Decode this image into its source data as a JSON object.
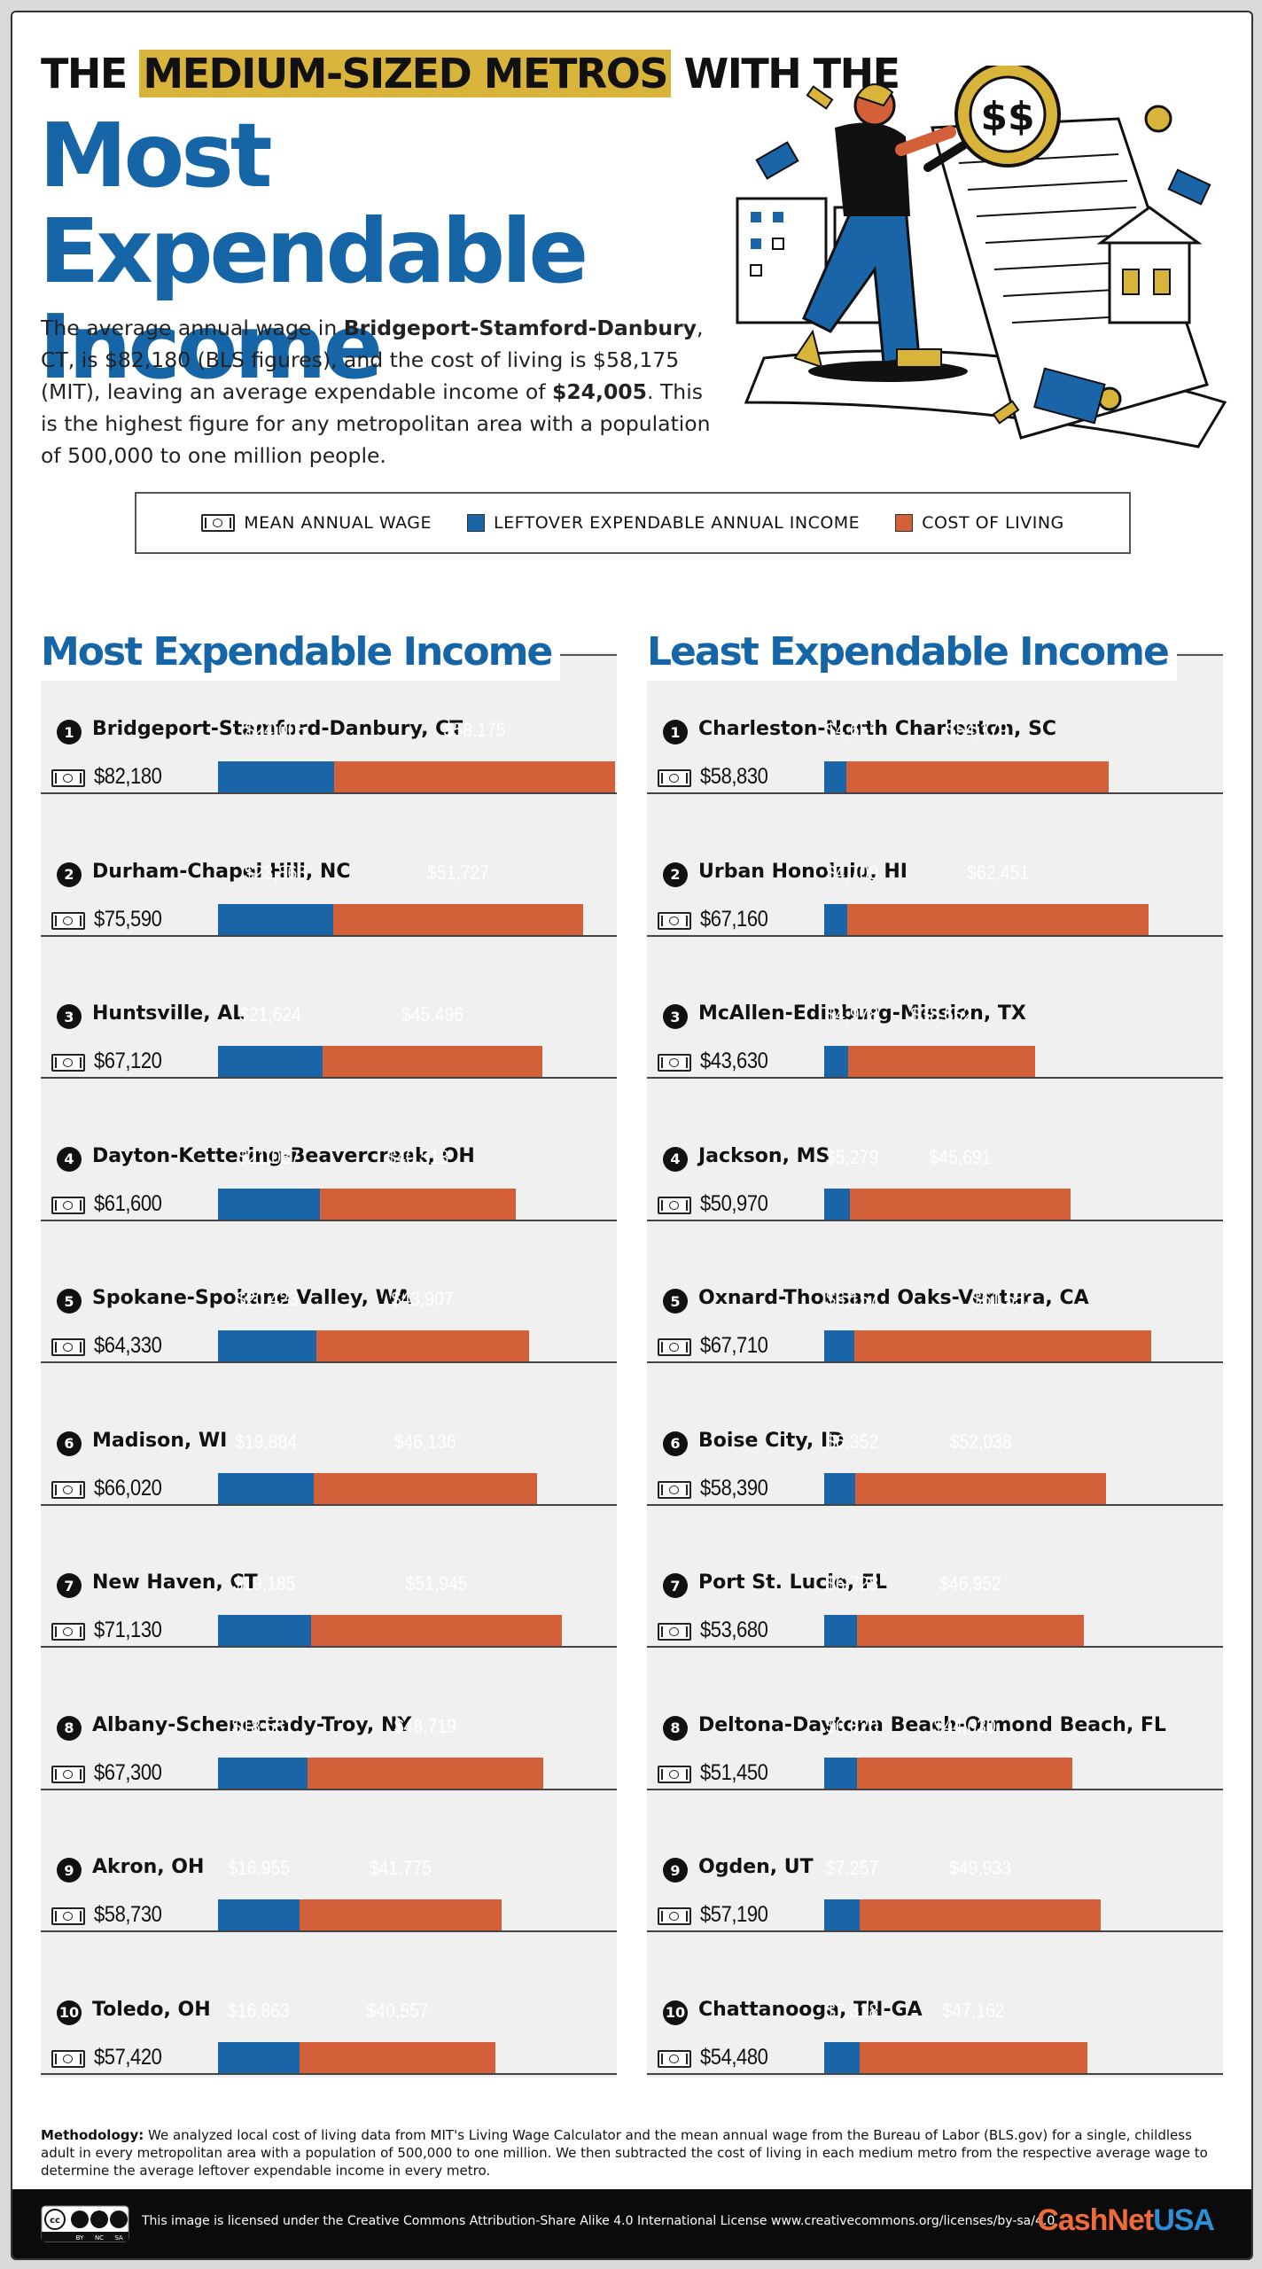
{
  "header": {
    "kicker_highlight": "MEDIUM-SIZED METROS",
    "kicker_pre": "THE ",
    "kicker_post": " WITH THE",
    "title_line1": "Most Expendable",
    "title_line2": "Income",
    "intro": {
      "p1": "The average annual wage in ",
      "city": "Bridgeport-Stamford-Danbury",
      "p2": ", CT, is $82,180 (BLS figures), and the cost of living is $58,175 (MIT), leaving an average expendable income of ",
      "amount": "$24,005",
      "p3": ". This is the highest figure for any metropolitan area with a population of 500,000 to one million people."
    },
    "illustration_icon": "person-with-magnifying-glass-receipt-illustration",
    "magnifier_text": "$$"
  },
  "legend": {
    "wage": "MEAN ANNUAL WAGE",
    "leftover": "LEFTOVER EXPENDABLE ANNUAL INCOME",
    "cost": "COST OF LIVING"
  },
  "colors": {
    "blue": "#1a64a8",
    "orange": "#d4603a",
    "title_blue": "#1565a7",
    "highlight": "#d8b43a"
  },
  "chart_data": [
    {
      "type": "bar",
      "title": "Most Expendable Income",
      "stacked": true,
      "orientation": "horizontal",
      "series_names": [
        "Leftover Expendable Annual Income",
        "Cost of Living"
      ],
      "rows": [
        {
          "rank": "1",
          "name": "Bridgeport-Stamford-Danbury, CT",
          "wage": 82180,
          "wage_label": "$82,180",
          "leftover": 24005,
          "leftover_label": "$24,005",
          "cost": 58175,
          "cost_label": "$58,175"
        },
        {
          "rank": "2",
          "name": "Durham-Chapel Hill, NC",
          "wage": 75590,
          "wage_label": "$75,590",
          "leftover": 23863,
          "leftover_label": "$23,863",
          "cost": 51727,
          "cost_label": "$51,727"
        },
        {
          "rank": "3",
          "name": "Huntsville, AL",
          "wage": 67120,
          "wage_label": "$67,120",
          "leftover": 21624,
          "leftover_label": "$21,624",
          "cost": 45496,
          "cost_label": "$45,496"
        },
        {
          "rank": "4",
          "name": "Dayton-Kettering-Beavercreek, OH",
          "wage": 61600,
          "wage_label": "$61,600",
          "leftover": 21087,
          "leftover_label": "$21,087",
          "cost": 40513,
          "cost_label": "$40,513"
        },
        {
          "rank": "5",
          "name": "Spokane-Spokane Valley, WA",
          "wage": 64330,
          "wage_label": "$64,330",
          "leftover": 20423,
          "leftover_label": "$20,423",
          "cost": 43907,
          "cost_label": "$43,907"
        },
        {
          "rank": "6",
          "name": "Madison, WI",
          "wage": 66020,
          "wage_label": "$66,020",
          "leftover": 19884,
          "leftover_label": "$19,884",
          "cost": 46136,
          "cost_label": "$46,136"
        },
        {
          "rank": "7",
          "name": "New Haven, CT",
          "wage": 71130,
          "wage_label": "$71,130",
          "leftover": 19185,
          "leftover_label": "$19,185",
          "cost": 51945,
          "cost_label": "$51,945"
        },
        {
          "rank": "8",
          "name": "Albany-Schenectady-Troy, NY",
          "wage": 67300,
          "wage_label": "$67,300",
          "leftover": 18581,
          "leftover_label": "$18,581",
          "cost": 48719,
          "cost_label": "$48,719"
        },
        {
          "rank": "9",
          "name": "Akron, OH",
          "wage": 58730,
          "wage_label": "$58,730",
          "leftover": 16955,
          "leftover_label": "$16,955",
          "cost": 41775,
          "cost_label": "$41,775"
        },
        {
          "rank": "10",
          "name": "Toledo, OH",
          "wage": 57420,
          "wage_label": "$57,420",
          "leftover": 16863,
          "leftover_label": "$16,863",
          "cost": 40557,
          "cost_label": "$40,557"
        }
      ]
    },
    {
      "type": "bar",
      "title": "Least Expendable Income",
      "stacked": true,
      "orientation": "horizontal",
      "series_names": [
        "Leftover Expendable Annual Income",
        "Cost of Living"
      ],
      "rows": [
        {
          "rank": "1",
          "name": "Charleston-North Charleston, SC",
          "wage": 58830,
          "wage_label": "$58,830",
          "leftover": 4651,
          "leftover_label": "$4,651",
          "cost": 54179,
          "cost_label": "$54,179"
        },
        {
          "rank": "2",
          "name": "Urban Honolulu, HI",
          "wage": 67160,
          "wage_label": "$67,160",
          "leftover": 4709,
          "leftover_label": "$4,709",
          "cost": 62451,
          "cost_label": "$62,451"
        },
        {
          "rank": "3",
          "name": "McAllen-Edinburg-Mission, TX",
          "wage": 43630,
          "wage_label": "$43,630",
          "leftover": 4978,
          "leftover_label": "$4,978",
          "cost": 38652,
          "cost_label": "$38,652"
        },
        {
          "rank": "4",
          "name": "Jackson, MS",
          "wage": 50970,
          "wage_label": "$50,970",
          "leftover": 5279,
          "leftover_label": "$5,279",
          "cost": 45691,
          "cost_label": "$45,691"
        },
        {
          "rank": "5",
          "name": "Oxnard-Thousand Oaks-Ventura, CA",
          "wage": 67710,
          "wage_label": "$67,710",
          "leftover": 6157,
          "leftover_label": "$6,157",
          "cost": 61553,
          "cost_label": "$61,553"
        },
        {
          "rank": "6",
          "name": "Boise City, ID",
          "wage": 58390,
          "wage_label": "$58,390",
          "leftover": 6352,
          "leftover_label": "$6,352",
          "cost": 52038,
          "cost_label": "$52,038"
        },
        {
          "rank": "7",
          "name": "Port St. Lucie, FL",
          "wage": 53680,
          "wage_label": "$53,680",
          "leftover": 6728,
          "leftover_label": "$6,728",
          "cost": 46952,
          "cost_label": "$46,952"
        },
        {
          "rank": "8",
          "name": "Deltona-Daytona Beach-Ormond Beach, FL",
          "wage": 51450,
          "wage_label": "$51,450",
          "leftover": 6820,
          "leftover_label": "$6,820",
          "cost": 44630,
          "cost_label": "$44,630"
        },
        {
          "rank": "9",
          "name": "Ogden, UT",
          "wage": 57190,
          "wage_label": "$57,190",
          "leftover": 7257,
          "leftover_label": "$7,257",
          "cost": 49933,
          "cost_label": "$49,933"
        },
        {
          "rank": "10",
          "name": "Chattanooga, TN-GA",
          "wage": 54480,
          "wage_label": "$54,480",
          "leftover": 7318,
          "leftover_label": "$7,318",
          "cost": 47162,
          "cost_label": "$47,162"
        }
      ]
    }
  ],
  "footer": {
    "method_label": "Methodology:",
    "method_text": " We analyzed local cost of living data from MIT's Living Wage Calculator and the mean annual wage from the Bureau of Labor (BLS.gov) for a single, childless adult in every metropolitan area with a population of 500,000 to one million. We then subtracted the cost of living in each medium metro from the respective average wage to determine the average leftover expendable income in every metro.",
    "license": "This image is licensed under the Creative Commons Attribution-Share Alike 4.0 International License www.creativecommons.org/licenses/by-sa/4.0",
    "cc_icon": "creative-commons-by-nc-sa-icon",
    "cc_labels": [
      "BY",
      "NC",
      "SA"
    ],
    "brand_main": "CashNet",
    "brand_suffix": "USA"
  }
}
